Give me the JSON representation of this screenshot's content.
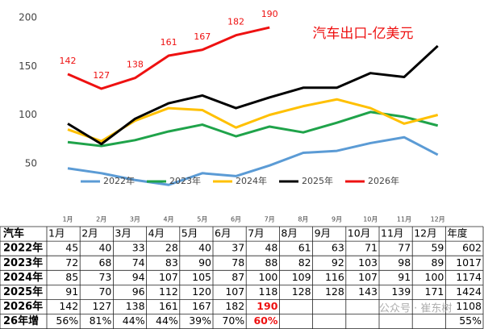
{
  "chart_data": {
    "type": "line",
    "title": "汽车出口-亿美元",
    "categories": [
      "1月",
      "2月",
      "3月",
      "4月",
      "5月",
      "6月",
      "7月",
      "8月",
      "9月",
      "10月",
      "11月",
      "12月"
    ],
    "ylim": [
      0,
      200
    ],
    "yticks": [
      50,
      100,
      150,
      200
    ],
    "legend": "bottom",
    "series": [
      {
        "name": "2022年",
        "color": "#5b9bd5",
        "values": [
          45,
          40,
          33,
          28,
          40,
          37,
          48,
          61,
          63,
          71,
          77,
          59
        ]
      },
      {
        "name": "2023年",
        "color": "#1fa34a",
        "values": [
          72,
          68,
          74,
          83,
          90,
          78,
          88,
          82,
          92,
          103,
          98,
          89
        ]
      },
      {
        "name": "2024年",
        "color": "#ffc000",
        "values": [
          85,
          73,
          94,
          107,
          105,
          87,
          100,
          109,
          116,
          107,
          91,
          100
        ]
      },
      {
        "name": "2025年",
        "color": "#000000",
        "values": [
          91,
          70,
          96,
          112,
          120,
          107,
          118,
          128,
          128,
          143,
          139,
          171
        ]
      },
      {
        "name": "2026年",
        "color": "#ee1111",
        "values": [
          142,
          127,
          138,
          161,
          167,
          182,
          190,
          null,
          null,
          null,
          null,
          null
        ],
        "labels": true
      }
    ]
  },
  "table": {
    "corner": "汽车",
    "total_header": "年度",
    "totals": [
      602,
      1017,
      1174,
      1424,
      1108
    ],
    "growth": {
      "label": "26年增",
      "values": [
        "56%",
        "81%",
        "44%",
        "44%",
        "39%",
        "70%",
        "60%"
      ],
      "total": "55%"
    }
  },
  "watermark": "公众号 · 崔东树"
}
